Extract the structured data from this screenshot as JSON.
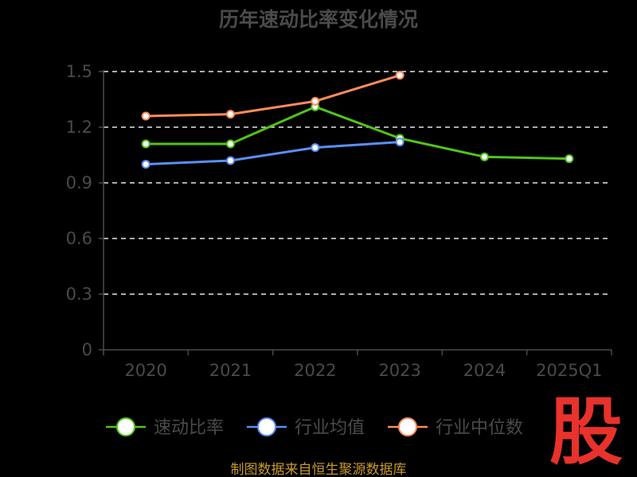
{
  "chart_data": {
    "type": "line",
    "title": "历年速动比率变化情况",
    "categories": [
      "2020",
      "2021",
      "2022",
      "2023",
      "2024",
      "2025Q1"
    ],
    "y_ticks": [
      "0",
      "0.3",
      "0.6",
      "0.9",
      "1.2",
      "1.5"
    ],
    "ylim": [
      0,
      1.5
    ],
    "grid": true,
    "legend_position": "bottom",
    "series": [
      {
        "name": "速动比率",
        "color": "#52c41a",
        "values": [
          1.11,
          1.11,
          1.31,
          1.14,
          1.04,
          1.03
        ]
      },
      {
        "name": "行业均值",
        "color": "#5b8ff9",
        "values": [
          1.0,
          1.02,
          1.09,
          1.12,
          null,
          null
        ]
      },
      {
        "name": "行业中位数",
        "color": "#ff8c5a",
        "values": [
          1.26,
          1.27,
          1.34,
          1.48,
          null,
          null
        ]
      }
    ]
  },
  "footer": {
    "source": "制图数据来自恒生聚源数据库"
  },
  "watermark": {
    "logo_text": "股"
  }
}
